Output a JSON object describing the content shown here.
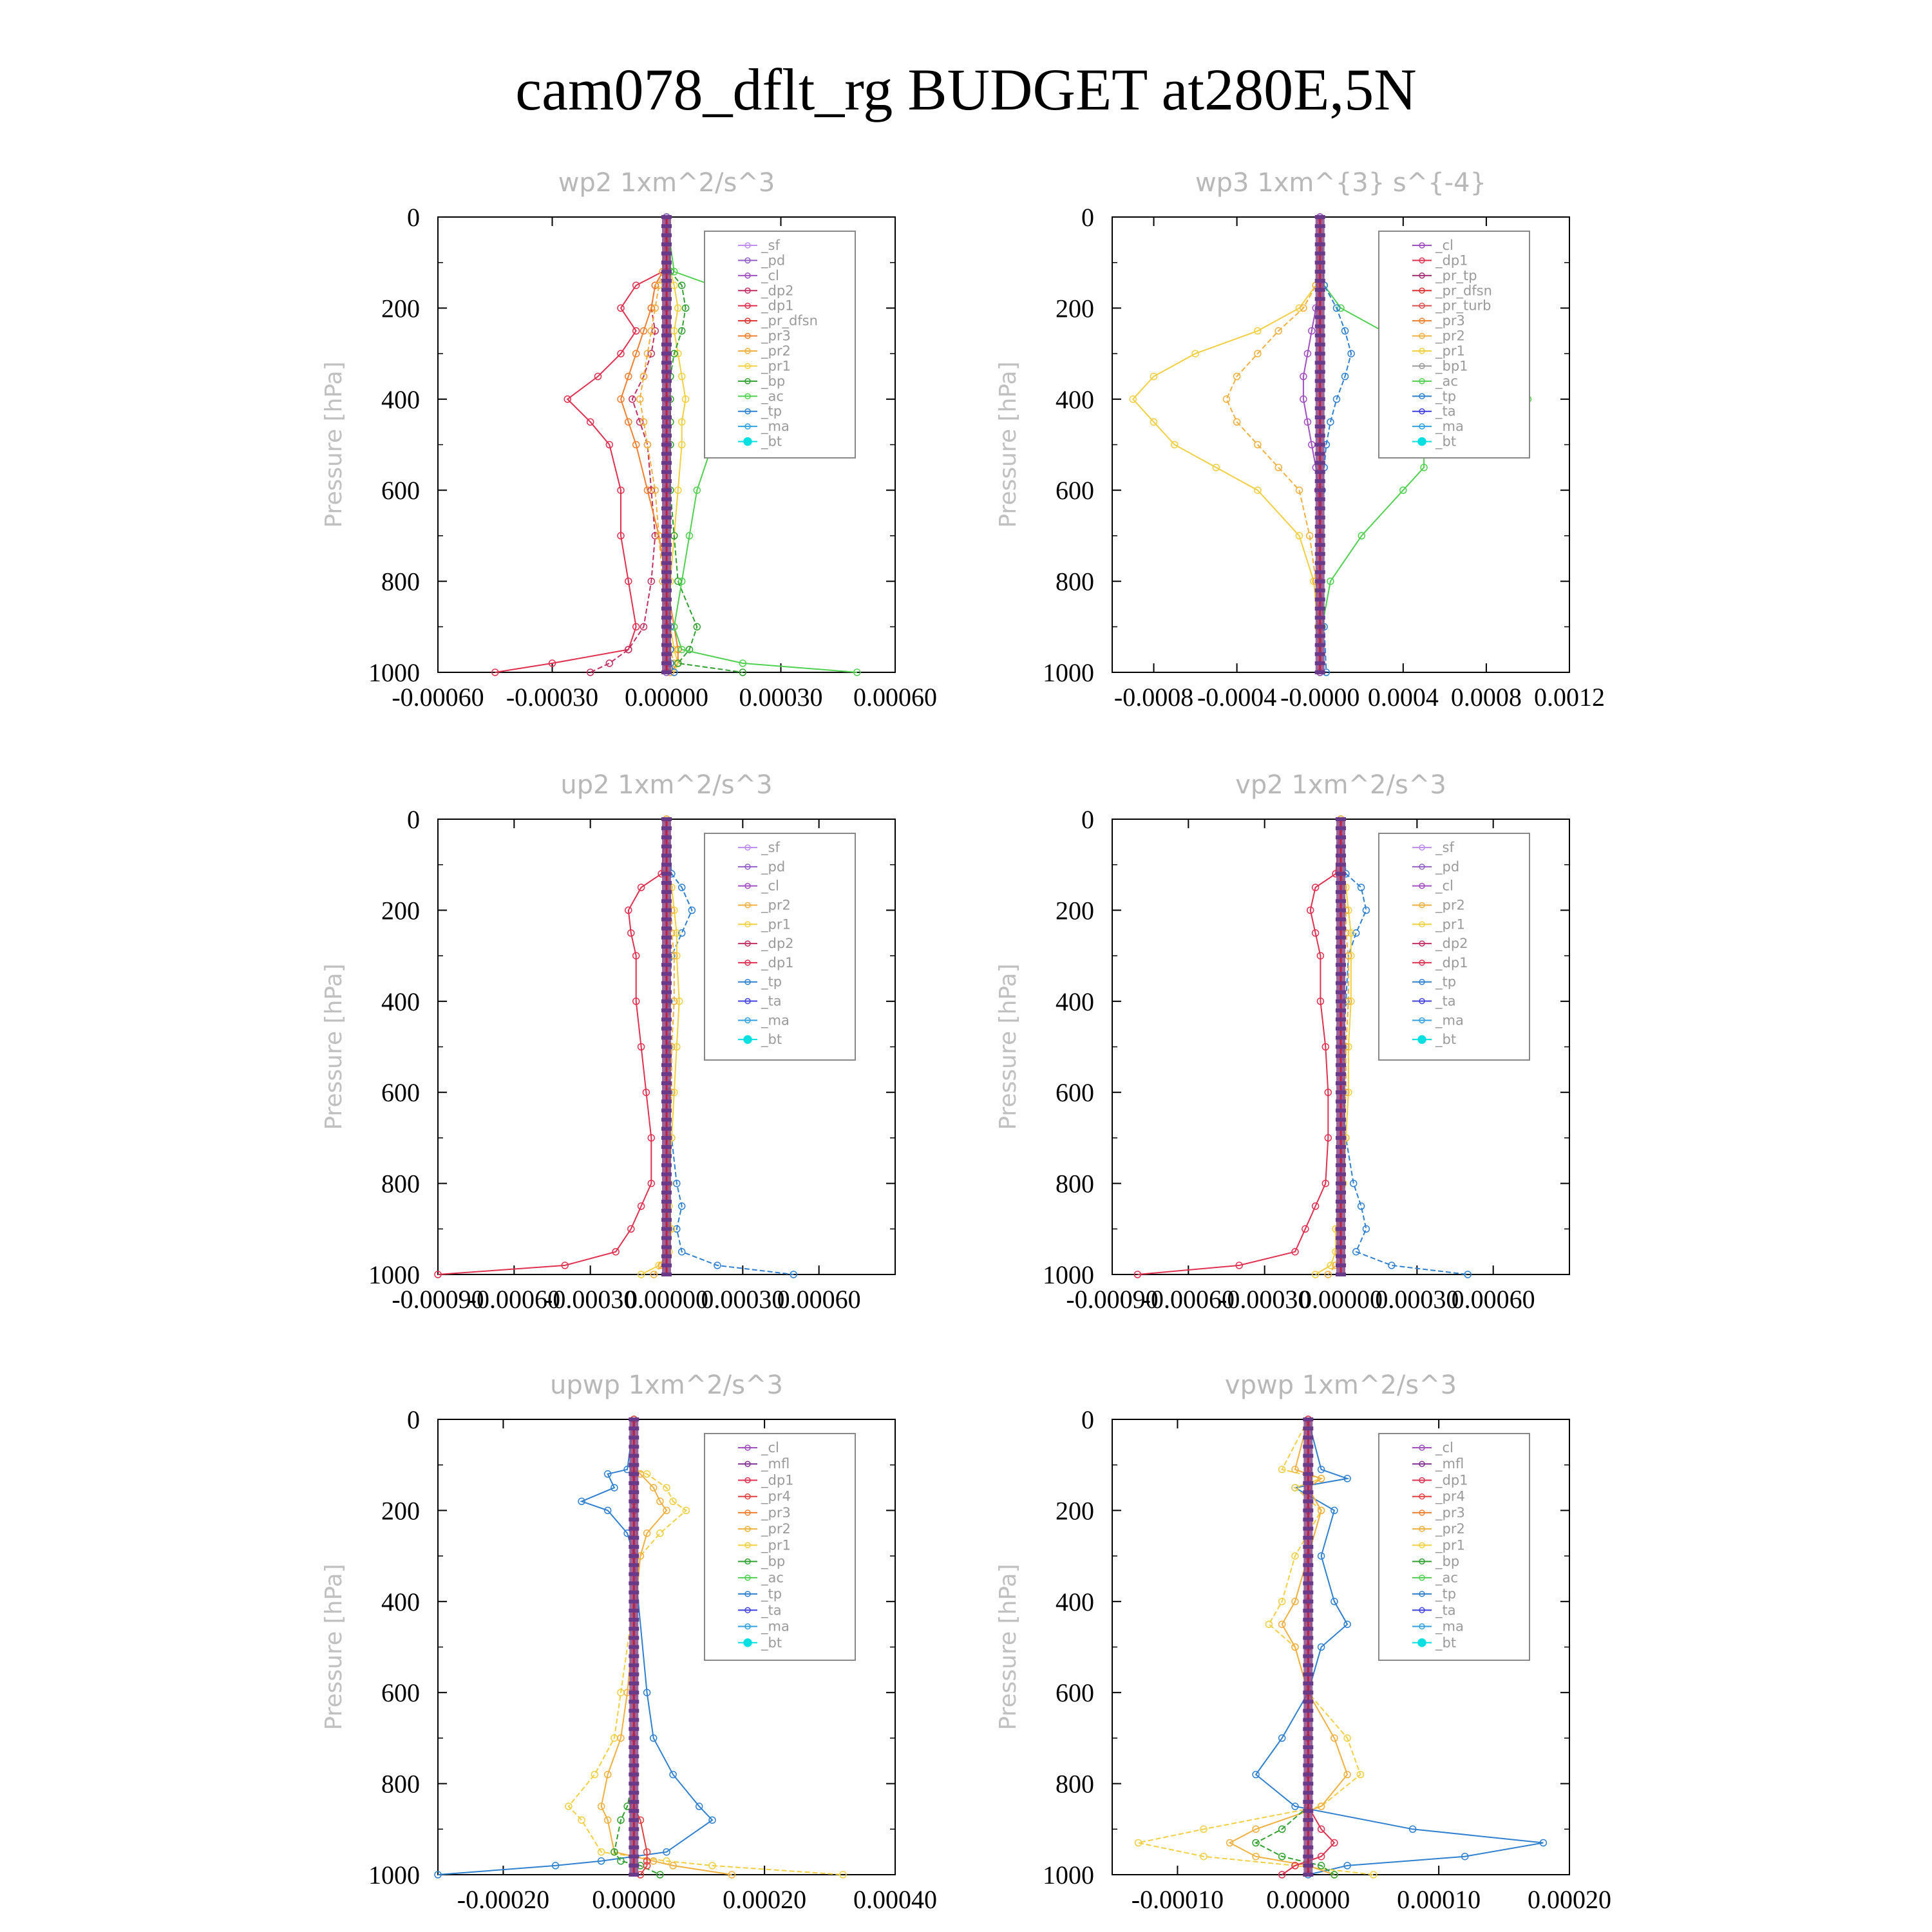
{
  "title": "cam078_dflt_rg  BUDGET at280E,5N",
  "colors": {
    "_sf": "#c090f0",
    "_pd": "#9060c8",
    "_cl": "#a050c0",
    "_dp2": "#c03060",
    "_dp1": "#e03050",
    "_pr_dfsn": "#e03030",
    "_pr_tp": "#a03070",
    "_pr_turb": "#e05050",
    "_pr4": "#e04040",
    "_pr3": "#f08030",
    "_pr2": "#f0b040",
    "_pr1": "#f0d040",
    "_bp": "#30a030",
    "_ac": "#50d050",
    "_tp": "#3080d0",
    "_ta": "#4040e0",
    "_ma": "#30a0e0",
    "_bt": "#00e0e0",
    "_mfl": "#803090"
  },
  "chart_data": [
    {
      "type": "line",
      "title": "wp2   1xm^2/s^3",
      "ylabel": "Pressure [hPa]",
      "ylim": [
        1000,
        0
      ],
      "xlim": [
        -0.0006,
        0.0006
      ],
      "xticks": [
        "-0.00060",
        "-0.00030",
        "0.00000",
        "0.00030",
        "0.00060"
      ],
      "yticks": [
        "0",
        "200",
        "400",
        "600",
        "800",
        "1000"
      ],
      "legend_position": "top-right",
      "legend": [
        "_sf",
        "_pd",
        "_cl",
        "_dp2",
        "_dp1",
        "_pr_dfsn",
        "_pr3",
        "_pr2",
        "_pr1",
        "_bp",
        "_ac",
        "_tp",
        "_ma",
        "_bt"
      ],
      "y": [
        0,
        120,
        150,
        200,
        250,
        300,
        350,
        400,
        450,
        500,
        600,
        700,
        800,
        900,
        950,
        980,
        1000
      ],
      "series": [
        {
          "name": "_dp1",
          "values": [
            0,
            -1e-05,
            -8e-05,
            -0.00012,
            -8e-05,
            -0.00012,
            -0.00018,
            -0.00026,
            -0.0002,
            -0.00015,
            -0.00012,
            -0.00012,
            -0.0001,
            -8e-05,
            -0.0001,
            -0.0003,
            -0.00045
          ]
        },
        {
          "name": "_dp2",
          "values": [
            0,
            -1e-05,
            -3e-05,
            -4e-05,
            -3e-05,
            -4e-05,
            -6e-05,
            -9e-05,
            -7e-05,
            -5e-05,
            -4e-05,
            -3e-05,
            -4e-05,
            -6e-05,
            -0.0001,
            -0.00015,
            -0.0002
          ]
        },
        {
          "name": "_pr3",
          "values": [
            0,
            -1e-05,
            -3e-05,
            -4e-05,
            -6e-05,
            -8e-05,
            -0.0001,
            -0.00012,
            -0.0001,
            -8e-05,
            -5e-05,
            -2e-05,
            0.0,
            2e-05,
            3e-05,
            3e-05,
            1e-05
          ]
        },
        {
          "name": "_pr2",
          "values": [
            0,
            -1e-05,
            -2e-05,
            -3e-05,
            -4e-05,
            -5e-05,
            -6e-05,
            -7e-05,
            -6e-05,
            -5e-05,
            -3e-05,
            -2e-05,
            -1e-05,
            0.0,
            1e-05,
            2e-05,
            1e-05
          ]
        },
        {
          "name": "_pr1",
          "values": [
            0,
            1e-05,
            2e-05,
            3e-05,
            2e-05,
            3e-05,
            4e-05,
            5e-05,
            4e-05,
            4e-05,
            3e-05,
            2e-05,
            1e-05,
            1e-05,
            2e-05,
            3e-05,
            2e-05
          ]
        },
        {
          "name": "_bp",
          "values": [
            0,
            1e-05,
            4e-05,
            5e-05,
            4e-05,
            2e-05,
            1e-05,
            1e-05,
            1e-05,
            1e-05,
            1e-05,
            2e-05,
            3e-05,
            8e-05,
            6e-05,
            3e-05,
            0.0002
          ]
        },
        {
          "name": "_ac",
          "values": [
            0,
            2e-05,
            0.00012,
            0.00018,
            0.0002,
            0.00018,
            0.00016,
            0.00022,
            0.00016,
            0.00012,
            8e-05,
            6e-05,
            4e-05,
            2e-05,
            4e-05,
            0.0002,
            0.0005
          ]
        },
        {
          "name": "_tp",
          "values": [
            0,
            0.0,
            0.0,
            0.0,
            0.0,
            0.0,
            0.0,
            0.0,
            0.0,
            0.0,
            0.0,
            0.0,
            0.0,
            1e-05,
            1e-05,
            1e-05,
            2e-05
          ]
        },
        {
          "name": "_pd",
          "values": [
            0,
            0.0,
            0.0,
            0.0,
            0.0,
            0.0,
            0.0,
            0.0,
            0.0,
            0.0,
            0.0,
            0.0,
            0.0,
            0.0,
            0.0,
            0.0,
            0.0
          ]
        }
      ]
    },
    {
      "type": "line",
      "title": "wp3   1xm^{3} s^{-4}",
      "ylabel": "Pressure [hPa]",
      "ylim": [
        1000,
        0
      ],
      "xlim": [
        -0.001,
        0.0012
      ],
      "xticks": [
        "-0.0008",
        "-0.0004",
        "-0.0000",
        "0.0004",
        "0.0008",
        "0.0012"
      ],
      "yticks": [
        "0",
        "200",
        "400",
        "600",
        "800",
        "1000"
      ],
      "legend_position": "top-right",
      "legend": [
        "_cl",
        "_dp1",
        "_pr_tp",
        "_pr_dfsn",
        "_pr_turb",
        "_pr3",
        "_pr2",
        "_pr1",
        "_bp1",
        "_ac",
        "_tp",
        "_ta",
        "_ma",
        "_bt"
      ],
      "y": [
        0,
        150,
        200,
        250,
        300,
        350,
        400,
        450,
        500,
        550,
        600,
        700,
        800,
        900,
        1000
      ],
      "series": [
        {
          "name": "_pr1",
          "values": [
            0,
            -2e-05,
            -0.0001,
            -0.0003,
            -0.0006,
            -0.0008,
            -0.0009,
            -0.0008,
            -0.0007,
            -0.0005,
            -0.0003,
            -0.0001,
            -3e-05,
            -1e-05,
            0
          ]
        },
        {
          "name": "_pr2",
          "values": [
            0,
            -2e-05,
            -8e-05,
            -0.0002,
            -0.0003,
            -0.0004,
            -0.00045,
            -0.0004,
            -0.0003,
            -0.0002,
            -0.0001,
            -5e-05,
            -2e-05,
            0,
            0
          ]
        },
        {
          "name": "_ac",
          "values": [
            0,
            2e-05,
            0.0001,
            0.0003,
            0.0005,
            0.0008,
            0.001,
            0.0009,
            0.0005,
            0.0005,
            0.0004,
            0.0002,
            5e-05,
            1e-05,
            0
          ]
        },
        {
          "name": "_tp",
          "values": [
            0,
            2e-05,
            8e-05,
            0.00012,
            0.00015,
            0.00012,
            8e-05,
            5e-05,
            3e-05,
            2e-05,
            1e-05,
            0,
            0,
            2e-05,
            3e-05
          ]
        },
        {
          "name": "_cl",
          "values": [
            0,
            0,
            -2e-05,
            -4e-05,
            -6e-05,
            -8e-05,
            -8e-05,
            -6e-05,
            -4e-05,
            -2e-05,
            -1e-05,
            0,
            0,
            0,
            0
          ]
        }
      ]
    },
    {
      "type": "line",
      "title": "up2   1xm^2/s^3",
      "ylabel": "Pressure [hPa]",
      "ylim": [
        1000,
        0
      ],
      "xlim": [
        -0.0009,
        0.0009
      ],
      "xticks": [
        "-0.00090",
        "-0.00060",
        "-0.00030",
        "0.00000",
        "0.00030",
        "0.00060"
      ],
      "yticks": [
        "0",
        "200",
        "400",
        "600",
        "800",
        "1000"
      ],
      "legend_position": "top-right",
      "legend": [
        "_sf",
        "_pd",
        "_cl",
        "_pr2",
        "_pr1",
        "_dp2",
        "_dp1",
        "_tp",
        "_ta",
        "_ma",
        "_bt"
      ],
      "y": [
        0,
        120,
        150,
        200,
        250,
        300,
        400,
        500,
        600,
        700,
        800,
        850,
        900,
        950,
        980,
        1000
      ],
      "series": [
        {
          "name": "_dp1",
          "values": [
            0,
            -2e-05,
            -0.0001,
            -0.00015,
            -0.00014,
            -0.00012,
            -0.00012,
            -0.0001,
            -8e-05,
            -6e-05,
            -6e-05,
            -0.0001,
            -0.00014,
            -0.0002,
            -0.0004,
            -0.0009
          ]
        },
        {
          "name": "_tp",
          "values": [
            0,
            2e-05,
            6e-05,
            0.0001,
            6e-05,
            2e-05,
            1e-05,
            1e-05,
            1e-05,
            2e-05,
            4e-05,
            6e-05,
            4e-05,
            6e-05,
            0.0002,
            0.0005
          ]
        },
        {
          "name": "_pr1",
          "values": [
            0,
            0,
            2e-05,
            3e-05,
            4e-05,
            4e-05,
            5e-05,
            4e-05,
            3e-05,
            2e-05,
            1e-05,
            1e-05,
            2e-05,
            1e-05,
            -3e-05,
            -0.0001
          ]
        },
        {
          "name": "_pr2",
          "values": [
            0,
            0,
            1e-05,
            2e-05,
            2e-05,
            3e-05,
            3e-05,
            2e-05,
            2e-05,
            1e-05,
            1e-05,
            0,
            1e-05,
            0,
            -2e-05,
            -5e-05
          ]
        }
      ]
    },
    {
      "type": "line",
      "title": "vp2   1xm^2/s^3",
      "ylabel": "Pressure [hPa]",
      "ylim": [
        1000,
        0
      ],
      "xlim": [
        -0.0009,
        0.0009
      ],
      "xticks": [
        "-0.00090",
        "-0.00060",
        "-0.00030",
        "0.00000",
        "0.00030",
        "0.00060"
      ],
      "yticks": [
        "0",
        "200",
        "400",
        "600",
        "800",
        "1000"
      ],
      "legend_position": "top-right",
      "legend": [
        "_sf",
        "_pd",
        "_cl",
        "_pr2",
        "_pr1",
        "_dp2",
        "_dp1",
        "_tp",
        "_ta",
        "_ma",
        "_bt"
      ],
      "y": [
        0,
        120,
        150,
        200,
        250,
        300,
        400,
        500,
        600,
        700,
        800,
        850,
        900,
        950,
        980,
        1000
      ],
      "series": [
        {
          "name": "_dp1",
          "values": [
            0,
            -2e-05,
            -0.0001,
            -0.00012,
            -0.0001,
            -8e-05,
            -8e-05,
            -6e-05,
            -5e-05,
            -5e-05,
            -6e-05,
            -0.0001,
            -0.00014,
            -0.00018,
            -0.0004,
            -0.0008
          ]
        },
        {
          "name": "_tp",
          "values": [
            0,
            2e-05,
            8e-05,
            0.0001,
            6e-05,
            3e-05,
            2e-05,
            1e-05,
            1e-05,
            2e-05,
            5e-05,
            8e-05,
            0.0001,
            6e-05,
            0.0002,
            0.0005
          ]
        },
        {
          "name": "_pr1",
          "values": [
            0,
            0,
            2e-05,
            3e-05,
            4e-05,
            4e-05,
            4e-05,
            3e-05,
            3e-05,
            2e-05,
            1e-05,
            0,
            -2e-05,
            -2e-05,
            -4e-05,
            -0.0001
          ]
        },
        {
          "name": "_pr2",
          "values": [
            0,
            0,
            1e-05,
            2e-05,
            2e-05,
            3e-05,
            3e-05,
            2e-05,
            2e-05,
            1e-05,
            0,
            0,
            -1e-05,
            -1e-05,
            -2e-05,
            -5e-05
          ]
        }
      ]
    },
    {
      "type": "line",
      "title": "upwp   1xm^2/s^3",
      "ylabel": "Pressure [hPa]",
      "ylim": [
        1000,
        0
      ],
      "xlim": [
        -0.0003,
        0.0004
      ],
      "xticks": [
        "-0.00020",
        "0.00000",
        "0.00020",
        "0.00040"
      ],
      "yticks": [
        "0",
        "200",
        "400",
        "600",
        "800",
        "1000"
      ],
      "legend_position": "top-right",
      "legend": [
        "_cl",
        "_mfl",
        "_dp1",
        "_pr4",
        "_pr3",
        "_pr2",
        "_pr1",
        "_bp",
        "_ac",
        "_tp",
        "_ta",
        "_ma",
        "_bt"
      ],
      "y": [
        0,
        110,
        120,
        150,
        180,
        200,
        250,
        300,
        600,
        700,
        780,
        850,
        880,
        950,
        970,
        980,
        1000
      ],
      "series": [
        {
          "name": "_tp",
          "values": [
            0,
            -1e-05,
            -4e-05,
            -3e-05,
            -8e-05,
            -4e-05,
            -1e-05,
            0,
            2e-05,
            3e-05,
            6e-05,
            0.0001,
            0.00012,
            5e-05,
            -5e-05,
            -0.00012,
            -0.0003
          ]
        },
        {
          "name": "_pr1",
          "values": [
            0,
            0,
            2e-05,
            5e-05,
            6e-05,
            8e-05,
            4e-05,
            1e-05,
            -2e-05,
            -3e-05,
            -6e-05,
            -0.0001,
            -8e-05,
            -5e-05,
            5e-05,
            0.00012,
            0.00032
          ]
        },
        {
          "name": "_pr2",
          "values": [
            0,
            0,
            1e-05,
            3e-05,
            4e-05,
            5e-05,
            2e-05,
            1e-05,
            -1e-05,
            -2e-05,
            -4e-05,
            -5e-05,
            -4e-05,
            -3e-05,
            3e-05,
            6e-05,
            0.00015
          ]
        },
        {
          "name": "_bp",
          "values": [
            0,
            0,
            0,
            0,
            0,
            0,
            0,
            0,
            0,
            0,
            0,
            -1e-05,
            -2e-05,
            -3e-05,
            -2e-05,
            1e-05,
            4e-05
          ]
        },
        {
          "name": "_pr4",
          "values": [
            0,
            0,
            0,
            0,
            0,
            0,
            0,
            0,
            0,
            0,
            0,
            0,
            1e-05,
            2e-05,
            2e-05,
            2e-05,
            1e-05
          ]
        }
      ]
    },
    {
      "type": "line",
      "title": "vpwp   1xm^2/s^3",
      "ylabel": "Pressure [hPa]",
      "ylim": [
        1000,
        0
      ],
      "xlim": [
        -0.00015,
        0.0002
      ],
      "xticks": [
        "-0.00010",
        "0.00000",
        "0.00010",
        "0.00020"
      ],
      "yticks": [
        "0",
        "200",
        "400",
        "600",
        "800",
        "1000"
      ],
      "legend_position": "top-right",
      "legend": [
        "_cl",
        "_mfl",
        "_dp1",
        "_pr4",
        "_pr3",
        "_pr2",
        "_pr1",
        "_bp",
        "_ac",
        "_tp",
        "_ta",
        "_ma",
        "_bt"
      ],
      "y": [
        0,
        110,
        130,
        150,
        200,
        300,
        400,
        450,
        500,
        600,
        700,
        780,
        850,
        900,
        930,
        960,
        980,
        1000
      ],
      "series": [
        {
          "name": "_tp",
          "values": [
            0,
            1e-05,
            3e-05,
            -1e-05,
            2e-05,
            1e-05,
            2e-05,
            3e-05,
            1e-05,
            0,
            -2e-05,
            -4e-05,
            -1e-05,
            8e-05,
            0.00018,
            0.00012,
            3e-05,
            0
          ]
        },
        {
          "name": "_pr1",
          "values": [
            0,
            -2e-05,
            1e-05,
            -1e-05,
            1e-05,
            -1e-05,
            -2e-05,
            -3e-05,
            -1e-05,
            0,
            3e-05,
            4e-05,
            1e-05,
            -8e-05,
            -0.00013,
            -8e-05,
            -1e-05,
            5e-05
          ]
        },
        {
          "name": "_pr2",
          "values": [
            0,
            -1e-05,
            1e-05,
            0,
            1e-05,
            0,
            -1e-05,
            -2e-05,
            -1e-05,
            0,
            2e-05,
            3e-05,
            1e-05,
            -4e-05,
            -6e-05,
            -4e-05,
            0,
            2e-05
          ]
        },
        {
          "name": "_bp",
          "values": [
            0,
            0,
            0,
            0,
            0,
            0,
            0,
            0,
            0,
            0,
            0,
            0,
            0,
            -2e-05,
            -4e-05,
            -2e-05,
            1e-05,
            2e-05
          ]
        },
        {
          "name": "_dp1",
          "values": [
            0,
            0,
            0,
            0,
            0,
            0,
            0,
            0,
            0,
            0,
            0,
            0,
            0,
            1e-05,
            2e-05,
            1e-05,
            -1e-05,
            -2e-05
          ]
        }
      ]
    }
  ]
}
